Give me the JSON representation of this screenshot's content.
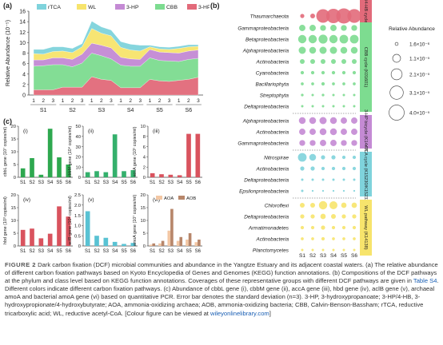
{
  "panel_labels": {
    "a": "(a)",
    "b": "(b)",
    "c": "(c)"
  },
  "caption": {
    "fig_label": "FIGURE 2",
    "text1": "Dark carbon fixation (DCF) microbial communities and abundance in the Yangtze Estuary and its adjacent coastal waters. (a) The relative abundance of different carbon fixation pathways based on Kyoto Encyclopedia of Genes and Genomes (KEGG) function annotations. (b) Compositions of the DCF pathways at the phylum and class level based on KEGG function annotations. Coverages of these representative groups with different DCF pathways are given in ",
    "link1": "Table S4",
    "text2": ". Different colors indicate different carbon fixation pathways. (c) Abundance of cbbL gene (i), cbbM gene (ii), accA gene (iii), hbd gene (iv), aclB gene (v), archaeal amoA and bacterial amoA gene (vi) based on quantitative PCR. Error bar denotes the standard deviation (n=3). 3-HP, 3-hydroxypropanoate; 3-HP/4-HB, 3-hydroxypropionate/4-hydroxybutyrate; AOA, ammonia-oxidizing archaea; AOB, ammonia-oxidizing bacteria; CBB, Calvin-Benson-Bassham; rTCA, reductive tricarboxylic acid; WL, reductive acetyl-CoA. [Colour figure can be viewed at ",
    "link2": "wileyonlinelibrary.com",
    "text3": "]"
  },
  "colors": {
    "rTCA": "#7fd3dc",
    "WL": "#f7e46c",
    "3-HP": "#c48ad4",
    "CBB": "#7ddc90",
    "3-HP/4-HB": "#e26a7a",
    "AOA": "#f3c7a4",
    "AOB": "#b7866a"
  },
  "chart_data": [
    {
      "id": "a",
      "type": "area",
      "ylabel": "Relative Abundance (10⁻⁵)",
      "ylim": [
        0,
        16
      ],
      "yticks": [
        "0",
        "2",
        "4",
        "6",
        "8",
        "10",
        "12",
        "14",
        "16"
      ],
      "x_ticks": [
        "1",
        "2",
        "3",
        "1",
        "2",
        "3",
        "1",
        "2",
        "3",
        "1",
        "2",
        "3",
        "1",
        "2",
        "3",
        "1",
        "2",
        "3"
      ],
      "groups": [
        "S1",
        "S2",
        "S3",
        "S4",
        "S5",
        "S6"
      ],
      "legend": [
        "rTCA",
        "WL",
        "3-HP",
        "CBB",
        "3-HP/4-HB"
      ],
      "series": [
        {
          "name": "3-HP/4-HB",
          "values": [
            1.0,
            1.0,
            1.0,
            1.5,
            1.5,
            1.5,
            3.5,
            3.0,
            2.8,
            1.4,
            1.4,
            1.4,
            3.0,
            2.7,
            2.6,
            2.8,
            3.0,
            3.4
          ]
        },
        {
          "name": "CBB",
          "values": [
            4.5,
            4.6,
            4.8,
            4.3,
            3.9,
            4.6,
            4.5,
            4.5,
            4.1,
            4.3,
            4.1,
            4.1,
            4.1,
            3.9,
            3.9,
            3.6,
            3.8,
            3.6
          ]
        },
        {
          "name": "3-HP",
          "values": [
            1.2,
            1.1,
            1.3,
            1.3,
            1.4,
            1.7,
            1.9,
            2.0,
            2.1,
            1.5,
            1.4,
            1.3,
            1.6,
            1.6,
            1.6,
            1.6,
            1.6,
            1.6
          ]
        },
        {
          "name": "WL",
          "values": [
            1.2,
            1.1,
            1.2,
            1.3,
            1.3,
            1.4,
            2.8,
            2.3,
            2.3,
            1.9,
            1.7,
            1.6,
            0.5,
            0.6,
            0.6,
            0.9,
            0.8,
            0.7
          ]
        },
        {
          "name": "rTCA",
          "values": [
            0.8,
            0.9,
            0.9,
            0.8,
            0.8,
            0.6,
            1.4,
            1.2,
            1.1,
            1.1,
            1.1,
            1.1,
            0.3,
            0.4,
            0.4,
            0.4,
            0.4,
            0.3
          ]
        }
      ]
    },
    {
      "id": "b",
      "type": "scatter",
      "x": [
        "S1",
        "S2",
        "S3",
        "S4",
        "S5",
        "S6"
      ],
      "rows": [
        "Thaumarchaeota",
        "Gammaproteobacteria",
        "Betaproteobacteria",
        "Alphaproteobacteria",
        "Actinobacteria",
        "Cyanobacteria",
        "Bacillariophyta",
        "Streptophyta",
        "Deltaproteobacteria",
        "Alphaproteobacteria",
        "Actinobacteria",
        "Gammaproteobacteria",
        "Nitrospirae",
        "Actinobacteria",
        "Deltaproteobacteria",
        "Epsilonproteobacteria",
        "Chloroflexi",
        "Deltaproteobacteria",
        "Armatimonadetes",
        "Actinobacteria",
        "Planctomycetes"
      ],
      "pathway_labels": [
        {
          "text": "3-HP/4-HB cycle (K14534)",
          "color": "#e26a7a",
          "rows": [
            0,
            0
          ]
        },
        {
          "text": "CBB cycle (K01601)",
          "color": "#7ddc90",
          "rows": [
            1,
            8
          ]
        },
        {
          "text": "3-HP bicycle (K14470)",
          "color": "#c48ad4",
          "rows": [
            9,
            11
          ]
        },
        {
          "text": "rTCA cycle (K15230/K15232)",
          "color": "#7fd3dc",
          "rows": [
            12,
            15
          ]
        },
        {
          "text": "WL pathway (K14138)",
          "color": "#f7e46c",
          "rows": [
            16,
            20
          ]
        }
      ],
      "legend_title": "Relative Abundance",
      "legend": [
        "1.6×10⁻⁶",
        "1.1×10⁻⁵",
        "2.1×10⁻⁵",
        "3.1×10⁻⁵",
        "4.0×10⁻⁵"
      ],
      "values_1e6": [
        [
          3,
          4,
          32,
          36,
          40,
          33
        ],
        [
          7,
          7,
          6,
          7,
          6,
          6
        ],
        [
          12,
          12,
          14,
          12,
          13,
          13
        ],
        [
          9,
          8,
          9,
          9,
          8,
          8
        ],
        [
          4,
          4,
          4,
          4,
          4,
          4
        ],
        [
          2,
          2,
          2,
          2,
          2,
          2
        ],
        [
          1.5,
          1.5,
          2,
          1.5,
          1.5,
          1.5
        ],
        [
          1.2,
          1,
          1.2,
          1,
          1,
          1
        ],
        [
          1,
          1,
          1,
          1,
          1,
          1
        ],
        [
          8,
          8,
          9,
          8,
          7,
          7
        ],
        [
          7,
          7,
          8,
          8,
          7,
          7
        ],
        [
          6,
          6,
          7,
          7,
          6,
          6
        ],
        [
          13,
          8,
          3,
          3,
          2,
          2
        ],
        [
          3,
          3,
          2,
          2,
          2,
          2
        ],
        [
          1,
          1,
          1,
          1,
          1,
          1
        ],
        [
          1,
          0.6,
          0.6,
          0.6,
          0.6,
          0.6
        ],
        [
          4,
          4,
          12,
          11,
          5,
          5
        ],
        [
          3,
          3,
          5,
          4,
          3,
          3
        ],
        [
          2,
          2,
          3,
          2,
          2,
          2
        ],
        [
          1.5,
          1.5,
          2,
          1.5,
          1.5,
          1.5
        ],
        [
          1,
          1,
          1,
          1,
          1,
          1
        ]
      ]
    },
    {
      "id": "c-i",
      "type": "bar",
      "label": "(i)",
      "ylabel": "cbbL gene (10⁷ copies/ml)",
      "ylim": [
        0,
        20
      ],
      "yticks": [
        "0",
        "5",
        "10",
        "15",
        "20"
      ],
      "color": "#2ea84f",
      "categories": [
        "S1",
        "S2",
        "S3",
        "S4",
        "S5",
        "S6"
      ],
      "values": [
        3.5,
        7.5,
        1.0,
        19.0,
        7.8,
        5.0
      ]
    },
    {
      "id": "c-ii",
      "type": "bar",
      "label": "(ii)",
      "ylabel": "cbbM gene (10⁴ copies/ml)",
      "ylim": [
        0,
        50
      ],
      "yticks": [
        "0",
        "10",
        "20",
        "30",
        "40",
        "50"
      ],
      "color": "#34b06c",
      "categories": [
        "S1",
        "S2",
        "S3",
        "S4",
        "S5",
        "S6"
      ],
      "values": [
        5,
        6,
        5,
        42,
        6,
        7
      ]
    },
    {
      "id": "c-iii",
      "type": "bar",
      "label": "(iii)",
      "ylabel": "accA gene (10⁵ copies/ml)",
      "ylim": [
        0,
        10
      ],
      "yticks": [
        "0",
        "2",
        "4",
        "6",
        "8",
        "10"
      ],
      "color": "#d9535e",
      "categories": [
        "S1",
        "S2",
        "S3",
        "S4",
        "S5",
        "S6"
      ],
      "values": [
        0.8,
        0.6,
        0.5,
        0.4,
        8.5,
        8.5
      ]
    },
    {
      "id": "c-iv",
      "type": "bar",
      "label": "(iv)",
      "ylabel": "hbd gene (10³ copies/ml)",
      "ylim": [
        0,
        20
      ],
      "yticks": [
        "0",
        "5",
        "10",
        "15",
        "20"
      ],
      "color": "#d9535e",
      "categories": [
        "S1",
        "S2",
        "S3",
        "S4",
        "S5",
        "S6"
      ],
      "values": [
        6.3,
        6.8,
        3.0,
        4.8,
        15.5,
        11.5
      ]
    },
    {
      "id": "c-v",
      "type": "bar",
      "label": "(v)",
      "ylabel": "aclB gene (10⁴ copies/ml)",
      "ylim": [
        0,
        2.5
      ],
      "yticks": [
        "0",
        "0.5",
        "1.0",
        "1.5",
        "2.0",
        "2.5"
      ],
      "color": "#59c2d3",
      "categories": [
        "S1",
        "S2",
        "S3",
        "S4",
        "S5",
        "S6"
      ],
      "values": [
        1.7,
        0.5,
        0.4,
        0.2,
        0.1,
        0.15
      ]
    },
    {
      "id": "c-vi",
      "type": "bar",
      "label": "(vi)",
      "ylabel": "amoA gene (10⁷ copies/ml)",
      "ylim": [
        0,
        20
      ],
      "yticks": [
        "0",
        "5",
        "10",
        "15",
        "20"
      ],
      "categories": [
        "S1",
        "S2",
        "S3",
        "S4",
        "S5",
        "S6"
      ],
      "legend": [
        "AOA",
        "AOB"
      ],
      "series": [
        {
          "name": "AOA",
          "values": [
            0.5,
            1.0,
            6.0,
            2.0,
            2.5,
            1.5
          ]
        },
        {
          "name": "AOB",
          "values": [
            1.0,
            2.0,
            14.5,
            3.5,
            5.0,
            2.5
          ]
        }
      ]
    }
  ]
}
